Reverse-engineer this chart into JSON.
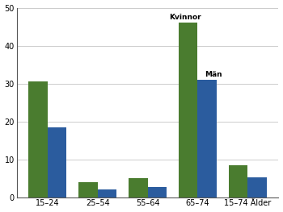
{
  "categories": [
    "15–24",
    "25–54",
    "55–64",
    "65–74",
    "15–74 Ålder"
  ],
  "kvinnor": [
    30.5,
    4.0,
    5.0,
    46.0,
    8.5
  ],
  "man": [
    18.5,
    2.0,
    2.8,
    31.0,
    5.2
  ],
  "color_kvinnor": "#4a7c2f",
  "color_man": "#2b5c9e",
  "ylim": [
    0,
    50
  ],
  "yticks": [
    0,
    10,
    20,
    30,
    40,
    50
  ],
  "bar_width": 0.38,
  "annotation_kvinnor": "Kvinnor",
  "annotation_man": "Män",
  "background_color": "#ffffff",
  "grid_color": "#cccccc",
  "border_color": "#555555"
}
